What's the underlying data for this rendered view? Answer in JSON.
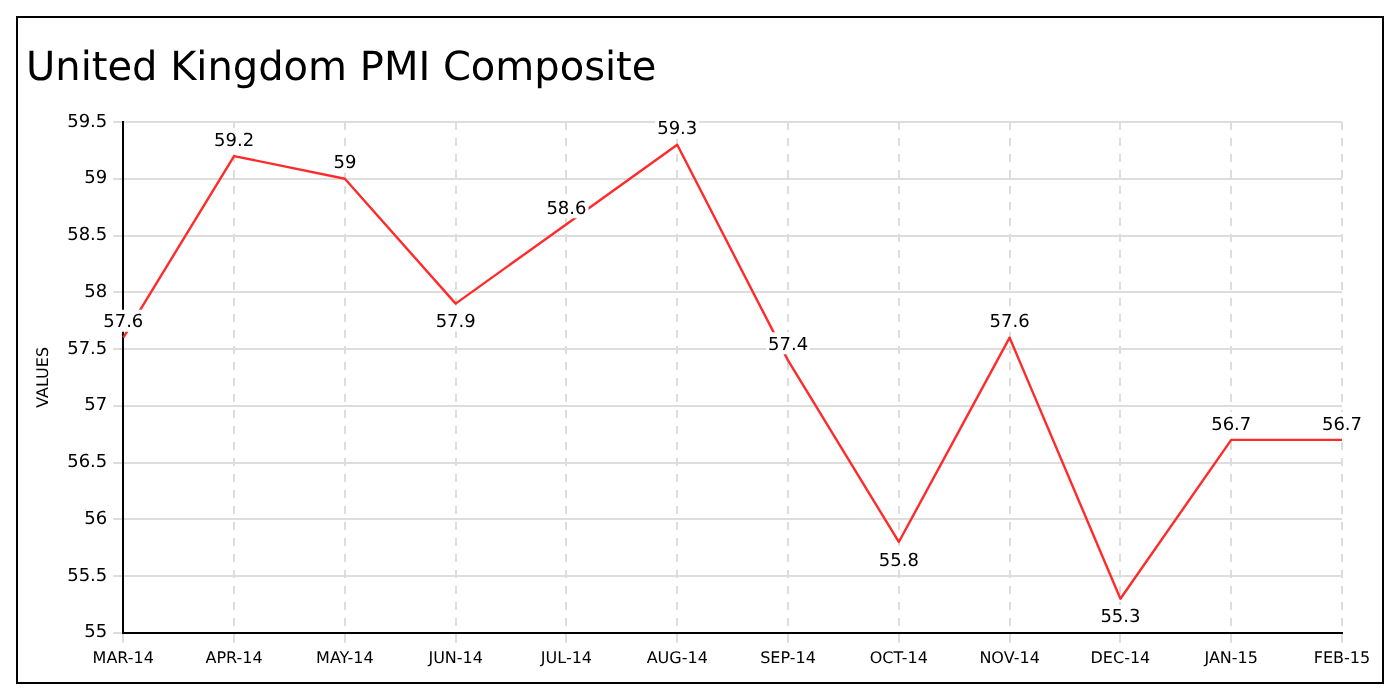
{
  "chart_data": {
    "type": "line",
    "title": "United Kingdom PMI Composite",
    "ylabel": "VALUES",
    "categories": [
      "MAR-14",
      "APR-14",
      "MAY-14",
      "JUN-14",
      "JUL-14",
      "AUG-14",
      "SEP-14",
      "OCT-14",
      "NOV-14",
      "DEC-14",
      "JAN-15",
      "FEB-15"
    ],
    "series": [
      {
        "color": "#ff2a2a",
        "values": [
          57.6,
          59.2,
          59,
          57.9,
          58.6,
          59.3,
          57.4,
          55.8,
          57.6,
          55.3,
          56.7,
          56.7
        ]
      }
    ],
    "ylim": [
      55,
      59.5
    ],
    "yticks": [
      55,
      55.5,
      56,
      56.5,
      57,
      57.5,
      58,
      58.5,
      59,
      59.5
    ],
    "grid": true,
    "data_labels": true,
    "marker": "none",
    "line_style": "solid",
    "legend": false
  }
}
